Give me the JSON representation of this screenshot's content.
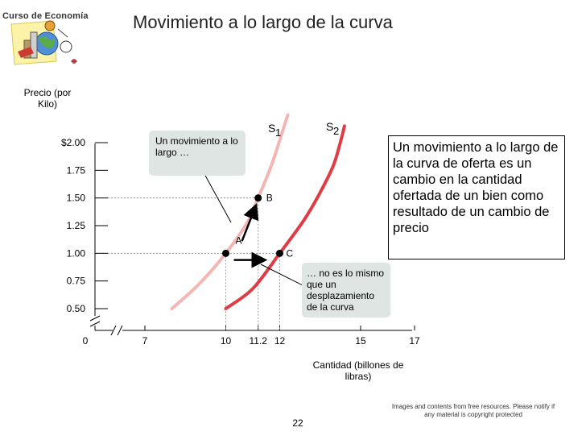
{
  "logo": {
    "text": "Curso de Economía"
  },
  "title": "Movimiento a lo largo de la curva",
  "right_box": {
    "text": "Un movimiento a lo largo de la curva de oferta es un cambio en la cantidad ofertada de un bien como resultado de un cambio de precio"
  },
  "callout_1": {
    "text": "Un movimiento a lo largo …"
  },
  "callout_2": {
    "text": "… no es lo mismo que un desplazamiento de la curva"
  },
  "footer_note": "Images and contents from free resources. Please notify if any material is copyright protected",
  "page_number": "22",
  "colors": {
    "s1": "#f4b6b4",
    "s2": "#e03c46",
    "callout_bg": "#dfe5e3",
    "guide": "#9a9a9a"
  },
  "chart_data": {
    "type": "line",
    "ylabel": "Precio (por Kilo)",
    "xlabel": "Cantidad  (billones de libras)",
    "y_ticks": [
      {
        "value": 0.5,
        "label": "0.50"
      },
      {
        "value": 0.75,
        "label": "0.75"
      },
      {
        "value": 1.0,
        "label": "1.00"
      },
      {
        "value": 1.25,
        "label": "1.25"
      },
      {
        "value": 1.5,
        "label": "1.50"
      },
      {
        "value": 1.75,
        "label": "1.75"
      },
      {
        "value": 2.0,
        "label": "$2.00"
      }
    ],
    "x_ticks": [
      {
        "value": 0,
        "label": "0"
      },
      {
        "value": 7,
        "label": "7"
      },
      {
        "value": 10,
        "label": "10"
      },
      {
        "value": 11.2,
        "label": "11.2"
      },
      {
        "value": 12,
        "label": "12"
      },
      {
        "value": 15,
        "label": "15"
      },
      {
        "value": 17,
        "label": "17"
      }
    ],
    "series": [
      {
        "name_main": "S",
        "name_sub": "1",
        "color": "#f4b6b4",
        "x": [
          8.0,
          9.0,
          10.0,
          10.8,
          11.2,
          11.7,
          12.1,
          12.3
        ],
        "y": [
          0.5,
          0.72,
          1.0,
          1.28,
          1.5,
          1.8,
          2.1,
          2.25
        ]
      },
      {
        "name_main": "S",
        "name_sub": "2",
        "color": "#e03c46",
        "x": [
          10.0,
          11.0,
          12.0,
          12.9,
          13.5,
          14.0,
          14.3,
          14.4
        ],
        "y": [
          0.5,
          0.68,
          1.0,
          1.3,
          1.55,
          1.8,
          2.05,
          2.15
        ]
      }
    ],
    "points": [
      {
        "label": "A",
        "x": 10,
        "y": 1.0
      },
      {
        "label": "B",
        "x": 11.2,
        "y": 1.5
      },
      {
        "label": "C",
        "x": 12,
        "y": 1.0
      }
    ]
  }
}
